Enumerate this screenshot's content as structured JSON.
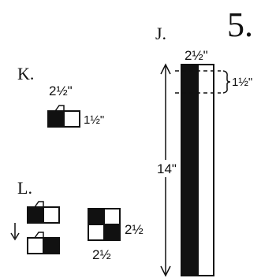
{
  "step_number": "5.",
  "panel_j": {
    "label": "J.",
    "width_label": "2½\"",
    "height_label": "14\"",
    "segment_label": "1½\""
  },
  "panel_k": {
    "label": "K.",
    "width_label": "2½\"",
    "height_label": "1½\""
  },
  "panel_l": {
    "label": "L.",
    "side_label": "2½",
    "bottom_label": "2½"
  }
}
